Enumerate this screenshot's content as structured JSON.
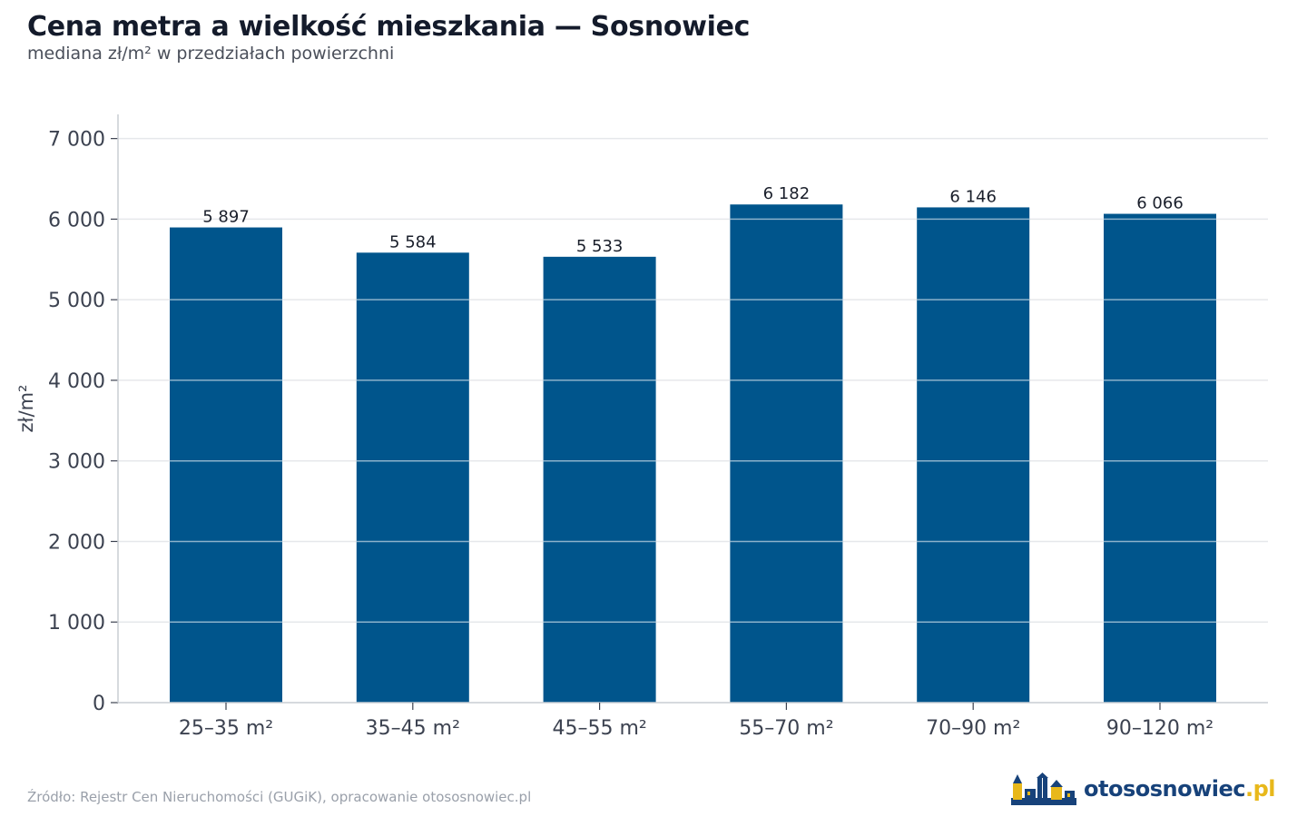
{
  "header": {
    "title": "Cena metra a wielkość mieszkania — Sosnowiec",
    "subtitle": "mediana zł/m² w przedziałach powierzchni"
  },
  "footer": {
    "source": "Źródło: Rejestr Cen Nieruchomości (GUGiK), opracowanie otososnowiec.pl",
    "logo_name": "otososnowiec",
    "logo_tld": ".pl"
  },
  "colors": {
    "bar": "#00558c",
    "grid": "#e6e8eb",
    "axis": "#c9cdd3",
    "text": "#3c4250",
    "logo_blue": "#17427a",
    "logo_yellow": "#e8b81b"
  },
  "chart_data": {
    "type": "bar",
    "categories": [
      "25–35 m²",
      "35–45 m²",
      "45–55 m²",
      "55–70 m²",
      "70–90 m²",
      "90–120 m²"
    ],
    "values": [
      5897,
      5584,
      5533,
      6182,
      6146,
      6066
    ],
    "value_labels": [
      "5 897",
      "5 584",
      "5 533",
      "6 182",
      "6 146",
      "6 066"
    ],
    "ylabel": "zł/m²",
    "xlabel": "",
    "ylim": [
      0,
      7300
    ],
    "yticks": [
      0,
      1000,
      2000,
      3000,
      4000,
      5000,
      6000,
      7000
    ],
    "ytick_labels": [
      "0",
      "1 000",
      "2 000",
      "3 000",
      "4 000",
      "5 000",
      "6 000",
      "7 000"
    ],
    "grid": true,
    "legend": "none"
  }
}
